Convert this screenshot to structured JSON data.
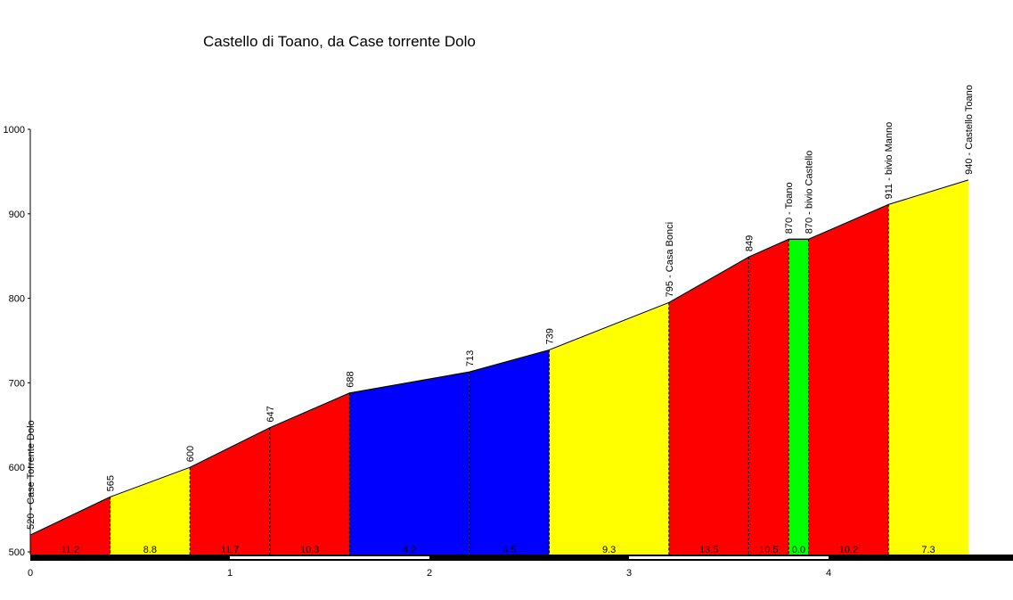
{
  "chart_data": {
    "type": "area",
    "title": "Castello di Toano, da Case torrente Dolo",
    "xlabel": "",
    "ylabel": "",
    "xlim": [
      0,
      4.92
    ],
    "ylim": [
      500,
      1000
    ],
    "x_ticks": [
      "0",
      "1",
      "2",
      "3",
      "4"
    ],
    "y_ticks": [
      "500",
      "600",
      "700",
      "800",
      "900",
      "1000"
    ],
    "points": [
      {
        "km": 0.0,
        "elev": 520,
        "label": "520 - Case Torrente Dolo"
      },
      {
        "km": 0.4,
        "elev": 565,
        "label": "565"
      },
      {
        "km": 0.8,
        "elev": 600,
        "label": "600"
      },
      {
        "km": 1.2,
        "elev": 647,
        "label": "647"
      },
      {
        "km": 1.6,
        "elev": 688,
        "label": "688"
      },
      {
        "km": 2.2,
        "elev": 713,
        "label": "713"
      },
      {
        "km": 2.6,
        "elev": 739,
        "label": "739"
      },
      {
        "km": 3.2,
        "elev": 795,
        "label": "795 - Casa Bonci"
      },
      {
        "km": 3.6,
        "elev": 849,
        "label": "849"
      },
      {
        "km": 3.8,
        "elev": 870,
        "label": "870 - Toano"
      },
      {
        "km": 3.9,
        "elev": 870,
        "label": "870 - bivio Castello"
      },
      {
        "km": 4.3,
        "elev": 911,
        "label": "911 - bivio Manno"
      },
      {
        "km": 4.7,
        "elev": 940,
        "label": "940 - Castello Toano"
      }
    ],
    "segments": [
      {
        "gradient": "11.2",
        "color": "#ff0000"
      },
      {
        "gradient": "8.8",
        "color": "#ffff00"
      },
      {
        "gradient": "11.7",
        "color": "#ff0000"
      },
      {
        "gradient": "10.3",
        "color": "#ff0000"
      },
      {
        "gradient": "4.2",
        "color": "#0000ff"
      },
      {
        "gradient": "6.5",
        "color": "#0000ff"
      },
      {
        "gradient": "9.3",
        "color": "#ffff00"
      },
      {
        "gradient": "13.5",
        "color": "#ff0000"
      },
      {
        "gradient": "10.5",
        "color": "#ff0000"
      },
      {
        "gradient": "0.0",
        "color": "#00ff00"
      },
      {
        "gradient": "10.2",
        "color": "#ff0000"
      },
      {
        "gradient": "7.3",
        "color": "#ffff00"
      }
    ]
  }
}
